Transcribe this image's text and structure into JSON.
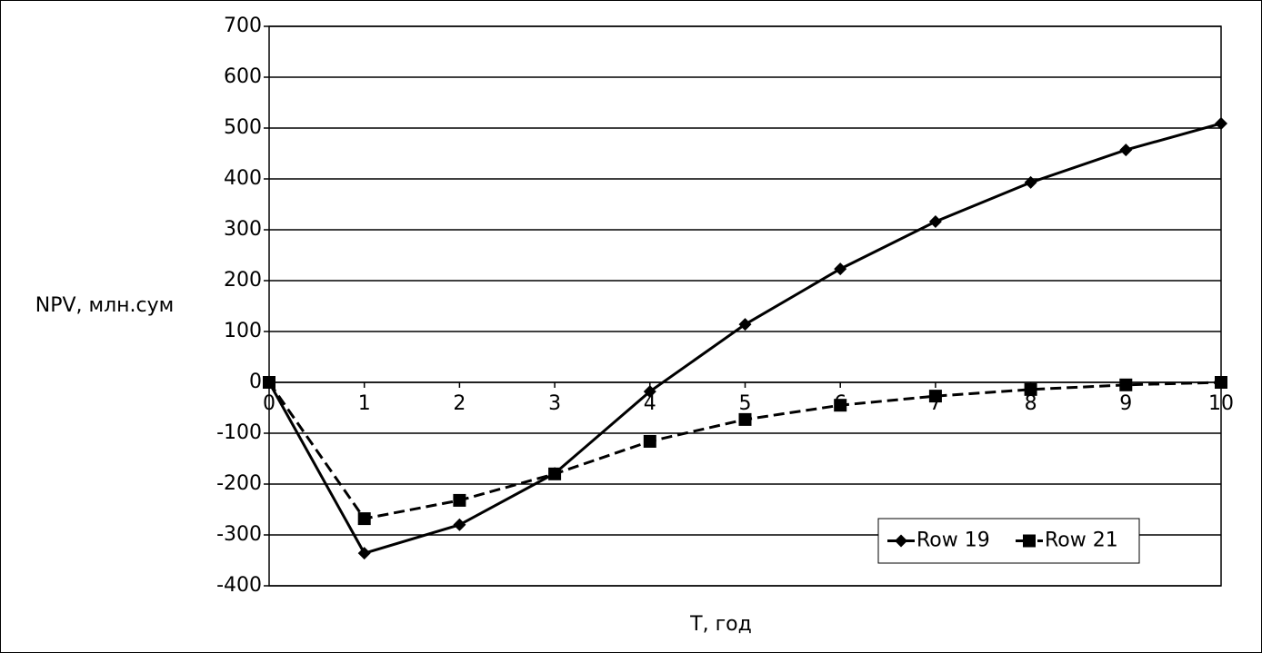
{
  "chart_data": {
    "type": "line",
    "x_label": "T, год",
    "y_label": "NPV, млн.сум",
    "x": [
      0,
      1,
      2,
      3,
      4,
      5,
      6,
      7,
      8,
      9,
      10
    ],
    "series": [
      {
        "name": "Row 19",
        "color": "#000000",
        "line_style": "solid",
        "marker": "diamond",
        "values": [
          0,
          -336,
          -280,
          -179,
          -18,
          114,
          223,
          316,
          393,
          457,
          509
        ]
      },
      {
        "name": "Row 21",
        "color": "#000000",
        "line_style": "dashed",
        "marker": "square",
        "values": [
          0,
          -268,
          -232,
          -180,
          -116,
          -73,
          -45,
          -27,
          -14,
          -5,
          0
        ]
      }
    ],
    "xlim": [
      0,
      10
    ],
    "xticks": [
      0,
      1,
      2,
      3,
      4,
      5,
      6,
      7,
      8,
      9,
      10
    ],
    "ylim": [
      -400,
      700
    ],
    "yticks": [
      -400,
      -300,
      -200,
      -100,
      0,
      100,
      200,
      300,
      400,
      500,
      600,
      700
    ],
    "grid": true,
    "legend_position": "lower-right"
  }
}
